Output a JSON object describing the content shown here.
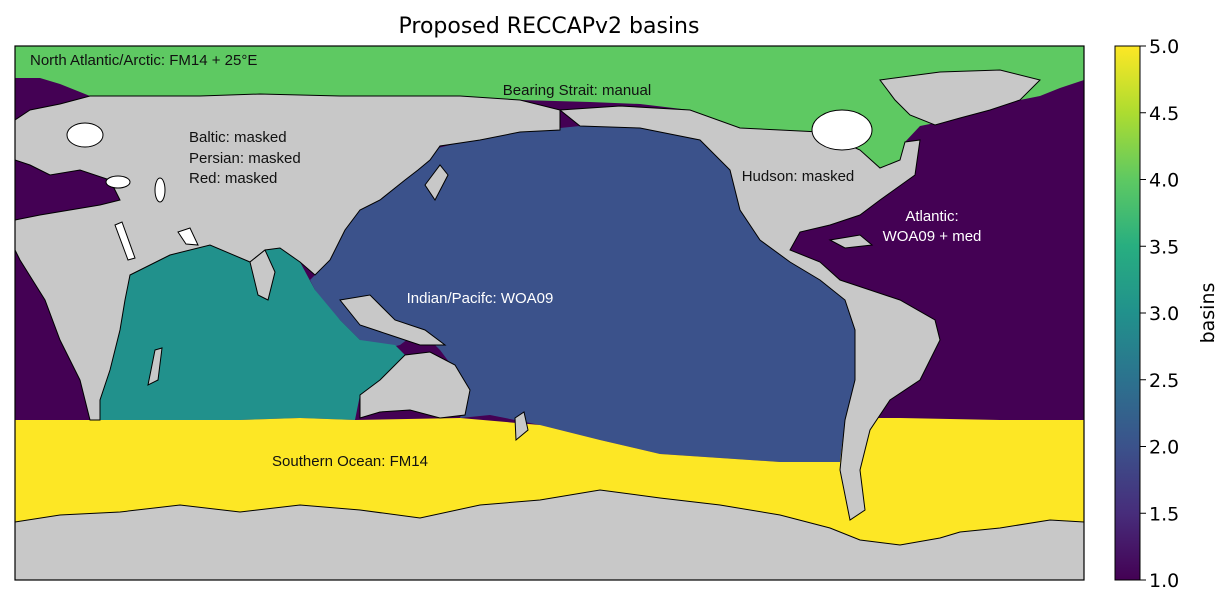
{
  "title": "Proposed RECCAPv2 basins",
  "colorbar": {
    "label": "basins",
    "min": 1.0,
    "max": 5.0,
    "ticks": [
      "1.0",
      "1.5",
      "2.0",
      "2.5",
      "3.0",
      "3.5",
      "4.0",
      "4.5",
      "5.0"
    ]
  },
  "annotations": {
    "north_atlantic_arctic": "North Atlantic/Arctic: FM14 + 25°E",
    "bearing_strait": "Bearing Strait: manual",
    "baltic": "Baltic: masked",
    "persian": "Persian: masked",
    "red": "Red: masked",
    "hudson": "Hudson: masked",
    "atlantic_1": "Atlantic:",
    "atlantic_2": "WOA09 + med",
    "indian_pacific": "Indian/Pacifc: WOA09",
    "southern_ocean": "Southern Ocean: FM14"
  },
  "basin_colors": {
    "atlantic_1": "#440154",
    "pacific_2": "#3b528b",
    "indian_3": "#21918c",
    "arctic_4": "#5ec962",
    "southern_5": "#fde725",
    "land": "#c8c8c8",
    "masked": "#ffffff"
  }
}
